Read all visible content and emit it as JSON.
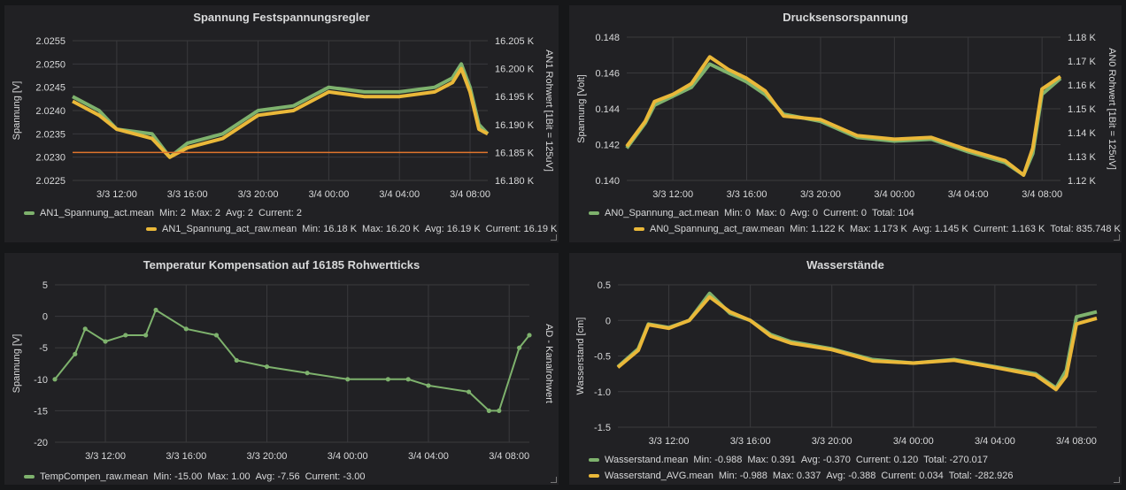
{
  "colors": {
    "green": "#7eb26d",
    "yellow": "#eab839",
    "orange": "#e0752d",
    "grid": "#3a3a3d"
  },
  "panels": [
    {
      "title": "Spannung Festspannungsregler",
      "ylabel_left": "Spannung [V]",
      "ylabel_right": "AN1 Rohwert [1Bit = 125uV]",
      "left_ticks": [
        "2.0255",
        "2.0250",
        "2.0245",
        "2.0240",
        "2.0235",
        "2.0230",
        "2.0225"
      ],
      "right_ticks": [
        "16.205 K",
        "16.200 K",
        "16.195 K",
        "16.190 K",
        "16.185 K",
        "16.180 K"
      ],
      "x_ticks": [
        "3/3 12:00",
        "3/3 16:00",
        "3/3 20:00",
        "3/4 00:00",
        "3/4 04:00",
        "3/4 08:00"
      ],
      "legend": [
        {
          "name": "AN1_Spannung_act.mean",
          "color": "green",
          "stats": [
            "Min: 2",
            "Max: 2",
            "Avg: 2",
            "Current: 2"
          ]
        },
        {
          "name": "AN1_Spannung_act_raw.mean",
          "color": "yellow",
          "stats": [
            "Min: 16.18 K",
            "Max: 16.20 K",
            "Avg: 16.19 K",
            "Current: 16.19 K"
          ]
        }
      ]
    },
    {
      "title": "Drucksensorspannung",
      "ylabel_left": "Spannung [Volt]",
      "ylabel_right": "AN0 Rohwert [1Bit = 125uV]",
      "left_ticks": [
        "0.148",
        "0.146",
        "0.144",
        "0.142",
        "0.140"
      ],
      "right_ticks": [
        "1.18 K",
        "1.17 K",
        "1.16 K",
        "1.15 K",
        "1.14 K",
        "1.13 K",
        "1.12 K"
      ],
      "x_ticks": [
        "3/3 12:00",
        "3/3 16:00",
        "3/3 20:00",
        "3/4 00:00",
        "3/4 04:00",
        "3/4 08:00"
      ],
      "legend": [
        {
          "name": "AN0_Spannung_act.mean",
          "color": "green",
          "stats": [
            "Min: 0",
            "Max: 0",
            "Avg: 0",
            "Current: 0",
            "Total: 104"
          ]
        },
        {
          "name": "AN0_Spannung_act_raw.mean",
          "color": "yellow",
          "stats": [
            "Min: 1.122 K",
            "Max: 1.173 K",
            "Avg: 1.145 K",
            "Current: 1.163 K",
            "Total: 835.748 K"
          ]
        }
      ]
    },
    {
      "title": "Temperatur Kompensation auf 16185 Rohwertticks",
      "ylabel_left": "Spannung [V]",
      "ylabel_right": "AD - Kanalrohwert",
      "left_ticks": [
        "5",
        "0",
        "-5",
        "-10",
        "-15",
        "-20"
      ],
      "right_ticks": [],
      "x_ticks": [
        "3/3 12:00",
        "3/3 16:00",
        "3/3 20:00",
        "3/4 00:00",
        "3/4 04:00",
        "3/4 08:00"
      ],
      "legend": [
        {
          "name": "TempCompen_raw.mean",
          "color": "green",
          "stats": [
            "Min: -15.00",
            "Max: 1.00",
            "Avg: -7.56",
            "Current: -3.00"
          ]
        }
      ]
    },
    {
      "title": "Wasserstände",
      "ylabel_left": "Wasserstand [cm]",
      "ylabel_right": "",
      "left_ticks": [
        "0.5",
        "0",
        "-0.5",
        "-1.0",
        "-1.5"
      ],
      "right_ticks": [],
      "x_ticks": [
        "3/3 12:00",
        "3/3 16:00",
        "3/3 20:00",
        "3/4 00:00",
        "3/4 04:00",
        "3/4 08:00"
      ],
      "legend": [
        {
          "name": "Wasserstand.mean",
          "color": "green",
          "stats": [
            "Min: -0.988",
            "Max: 0.391",
            "Avg: -0.370",
            "Current: 0.120",
            "Total: -270.017"
          ]
        },
        {
          "name": "Wasserstand_AVG.mean",
          "color": "yellow",
          "stats": [
            "Min: -0.988",
            "Max: 0.337",
            "Avg: -0.388",
            "Current: 0.034",
            "Total: -282.926"
          ]
        }
      ]
    }
  ],
  "chart_data": [
    {
      "type": "line",
      "x": [
        "3/3 09:30",
        "3/3 11:00",
        "3/3 12:00",
        "3/3 14:00",
        "3/3 15:00",
        "3/3 16:00",
        "3/3 18:00",
        "3/3 20:00",
        "3/3 22:00",
        "3/4 00:00",
        "3/4 02:00",
        "3/4 04:00",
        "3/4 06:00",
        "3/4 07:00",
        "3/4 07:30",
        "3/4 08:00",
        "3/4 08:30",
        "3/4 09:00"
      ],
      "series": [
        {
          "name": "AN1_Spannung_act.mean",
          "values": [
            2.0243,
            2.024,
            2.0236,
            2.0235,
            2.023,
            2.0233,
            2.0235,
            2.024,
            2.0241,
            2.0245,
            2.0244,
            2.0244,
            2.0245,
            2.0247,
            2.025,
            2.0245,
            2.0237,
            2.0235
          ]
        },
        {
          "name": "AN1_Spannung_act_raw.mean",
          "values": [
            2.0242,
            2.0239,
            2.0236,
            2.0234,
            2.023,
            2.0232,
            2.0234,
            2.0239,
            2.024,
            2.0244,
            2.0243,
            2.0243,
            2.0244,
            2.0246,
            2.0249,
            2.0244,
            2.0236,
            2.0235
          ]
        },
        {
          "name": "",
          "values": [
            2.0231,
            2.0231,
            2.0231,
            2.0231,
            2.0231,
            2.0231,
            2.0231,
            2.0231,
            2.0231,
            2.0231,
            2.0231,
            2.0231,
            2.0231,
            2.0231,
            2.0231,
            2.0231,
            2.0231,
            2.0231
          ]
        }
      ],
      "ylim": [
        2.0225,
        2.0255
      ],
      "y2lim": [
        16180,
        16205
      ]
    },
    {
      "type": "line",
      "x": [
        "3/3 09:30",
        "3/3 10:30",
        "3/3 11:00",
        "3/3 12:00",
        "3/3 13:00",
        "3/3 14:00",
        "3/3 15:00",
        "3/3 16:00",
        "3/3 17:00",
        "3/3 18:00",
        "3/3 20:00",
        "3/3 22:00",
        "3/4 00:00",
        "3/4 02:00",
        "3/4 04:00",
        "3/4 06:00",
        "3/4 07:00",
        "3/4 07:30",
        "3/4 08:00",
        "3/4 09:00"
      ],
      "series": [
        {
          "name": "AN0_Spannung_act.mean",
          "values": [
            0.1418,
            0.1432,
            0.1442,
            0.1447,
            0.1452,
            0.1465,
            0.146,
            0.1455,
            0.1448,
            0.1437,
            0.1433,
            0.1424,
            0.1422,
            0.1423,
            0.1416,
            0.141,
            0.1403,
            0.1415,
            0.1448,
            0.1457
          ]
        },
        {
          "name": "AN0_Spannung_act_raw.mean",
          "values": [
            0.1419,
            0.1433,
            0.1444,
            0.1448,
            0.1454,
            0.1469,
            0.1462,
            0.1457,
            0.145,
            0.1436,
            0.1434,
            0.1425,
            0.1423,
            0.1424,
            0.1417,
            0.1411,
            0.1403,
            0.1418,
            0.1451,
            0.1458
          ]
        }
      ],
      "ylim": [
        0.14,
        0.148
      ],
      "y2lim": [
        1120,
        1180
      ]
    },
    {
      "type": "scatter",
      "x": [
        "3/3 09:30",
        "3/3 10:30",
        "3/3 11:00",
        "3/3 12:00",
        "3/3 13:00",
        "3/3 14:00",
        "3/3 14:30",
        "3/3 16:00",
        "3/3 17:30",
        "3/3 18:30",
        "3/3 20:00",
        "3/3 22:00",
        "3/4 00:00",
        "3/4 02:00",
        "3/4 03:00",
        "3/4 04:00",
        "3/4 06:00",
        "3/4 07:00",
        "3/4 07:30",
        "3/4 08:30",
        "3/4 09:00"
      ],
      "series": [
        {
          "name": "TempCompen_raw.mean",
          "values": [
            -10,
            -6,
            -2,
            -4,
            -3,
            -3,
            1,
            -2,
            -3,
            -7,
            -8,
            -9,
            -10,
            -10,
            -10,
            -11,
            -12,
            -15,
            -15,
            -5,
            -3
          ]
        }
      ],
      "ylim": [
        -20,
        5
      ]
    },
    {
      "type": "line",
      "x": [
        "3/3 09:30",
        "3/3 10:30",
        "3/3 11:00",
        "3/3 12:00",
        "3/3 13:00",
        "3/3 14:00",
        "3/3 15:00",
        "3/3 16:00",
        "3/3 17:00",
        "3/3 18:00",
        "3/3 20:00",
        "3/3 22:00",
        "3/4 00:00",
        "3/4 02:00",
        "3/4 04:00",
        "3/4 06:00",
        "3/4 07:00",
        "3/4 07:30",
        "3/4 08:00",
        "3/4 09:00"
      ],
      "series": [
        {
          "name": "Wasserstand.mean",
          "values": [
            -0.65,
            -0.4,
            -0.05,
            -0.1,
            0.0,
            0.38,
            0.1,
            0.0,
            -0.2,
            -0.3,
            -0.4,
            -0.55,
            -0.6,
            -0.55,
            -0.65,
            -0.75,
            -0.95,
            -0.7,
            0.05,
            0.12
          ]
        },
        {
          "name": "Wasserstand_AVG.mean",
          "values": [
            -0.66,
            -0.42,
            -0.06,
            -0.11,
            0.0,
            0.33,
            0.12,
            0.0,
            -0.22,
            -0.32,
            -0.41,
            -0.57,
            -0.6,
            -0.56,
            -0.66,
            -0.77,
            -0.97,
            -0.78,
            -0.05,
            0.03
          ]
        }
      ],
      "ylim": [
        -1.5,
        0.5
      ]
    }
  ]
}
